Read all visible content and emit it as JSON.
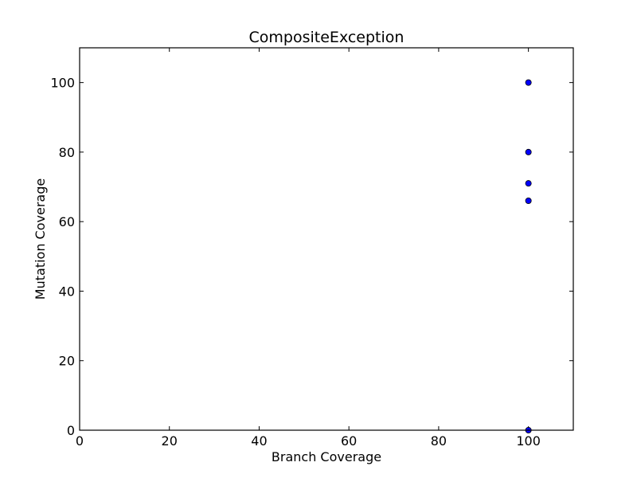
{
  "chart_data": {
    "type": "scatter",
    "title": "CompositeException",
    "xlabel": "Branch Coverage",
    "ylabel": "Mutation Coverage",
    "xlim": [
      0,
      110
    ],
    "ylim": [
      0,
      110
    ],
    "xticks": [
      0,
      20,
      40,
      60,
      80,
      100
    ],
    "yticks": [
      0,
      20,
      40,
      60,
      80,
      100
    ],
    "grid": false,
    "marker_color": "#0000ff",
    "marker_edge_color": "#000000",
    "points": [
      {
        "x": 100,
        "y": 100
      },
      {
        "x": 100,
        "y": 80
      },
      {
        "x": 100,
        "y": 71
      },
      {
        "x": 100,
        "y": 66
      },
      {
        "x": 100,
        "y": 0
      }
    ]
  }
}
